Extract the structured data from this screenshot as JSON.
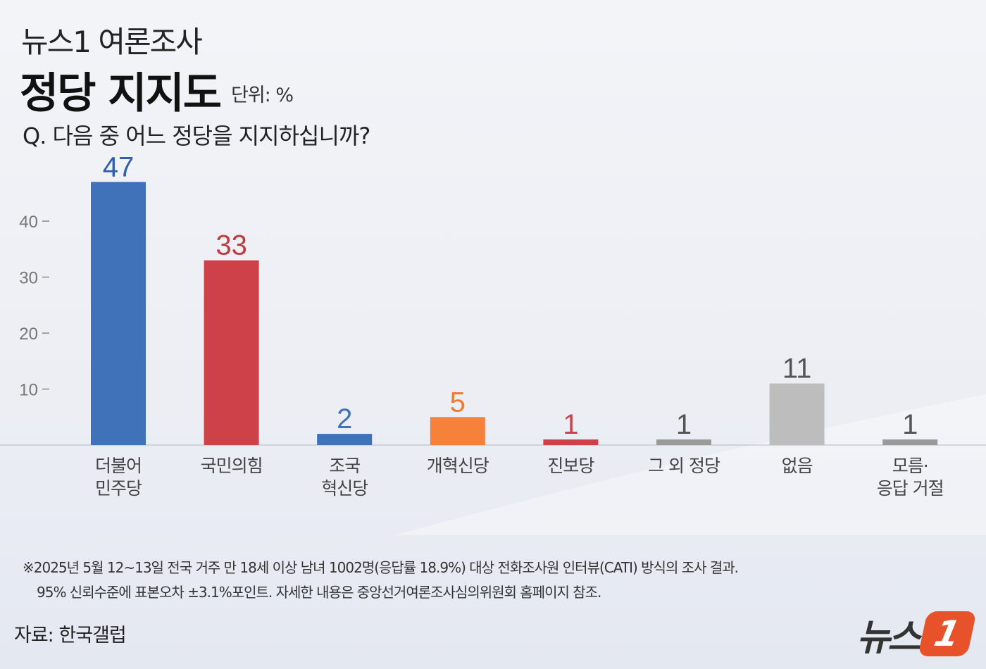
{
  "header": {
    "kicker": "뉴스1 여론조사",
    "title": "정당 지지도",
    "unit": "단위: %",
    "question": "Q. 다음 중 어느 정당을 지지하십니까?"
  },
  "chart_data": {
    "type": "bar",
    "title": "정당 지지도",
    "ylabel": "%",
    "ylim": [
      0,
      47
    ],
    "yticks": [
      10,
      20,
      30,
      40
    ],
    "categories": [
      [
        "더불어",
        "민주당"
      ],
      [
        "국민의힘"
      ],
      [
        "조국",
        "혁신당"
      ],
      [
        "개혁신당"
      ],
      [
        "진보당"
      ],
      [
        "그 외 정당"
      ],
      [
        "없음"
      ],
      [
        "모름·",
        "응답 거절"
      ]
    ],
    "values": [
      47,
      33,
      2,
      5,
      1,
      1,
      11,
      1
    ],
    "colors": [
      "#3f72b8",
      "#cf4148",
      "#3f72b8",
      "#f5813a",
      "#cf4148",
      "#9a9a9a",
      "#bdbdbd",
      "#9a9a9a"
    ],
    "label_colors": [
      "#2f5fa8",
      "#c23a41",
      "#3f72b8",
      "#f07a32",
      "#cf4148",
      "#555555",
      "#555555",
      "#555555"
    ]
  },
  "footnote": {
    "line1": "※2025년 5월 12~13일 전국 거주 만 18세 이상 남녀 1002명(응답률 18.9%) 대상 전화조사원 인터뷰(CATI) 방식의 조사 결과.",
    "line2": "95% 신뢰수준에 표본오차 ±3.1%포인트. 자세한 내용은 중앙선거여론조사심의위원회 홈페이지 참조."
  },
  "source": "자료: 한국갤럽",
  "logo": {
    "text": "뉴스",
    "number": "1"
  }
}
